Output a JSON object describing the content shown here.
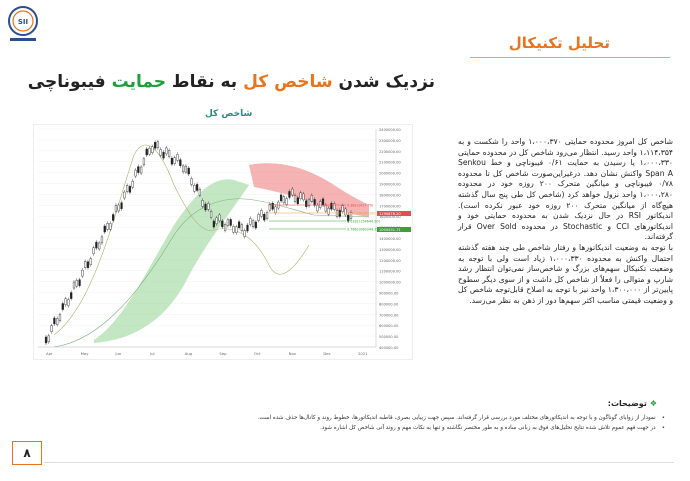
{
  "section_title": "تحلیل تکنیکال",
  "headline": {
    "part1": "نزدیک شدن ",
    "highlight1": "شاخص کل",
    "part2": " به نقاط ",
    "highlight2": "حمایت",
    "part3": " فیبوناچی"
  },
  "chart": {
    "title": "شاخص کل",
    "y_axis_labels": [
      "2400000.00",
      "2300000.00",
      "2200000.00",
      "2100000.00",
      "2000000.00",
      "1900000.00",
      "1800000.00",
      "1700000.00",
      "1600000.00",
      "1500000.00",
      "1400000.00",
      "1300000.00",
      "1200000.00",
      "1100000.00",
      "1000000.00",
      "900000.00",
      "800000.00",
      "700000.00",
      "600000.00",
      "500000.00",
      "400000.00"
    ],
    "x_axis_labels": [
      "Apr",
      "May",
      "Jun",
      "Jul",
      "Aug",
      "Sep",
      "Oct",
      "Nov",
      "Dec",
      "2021"
    ],
    "fib_labels": [
      "0.382(1417.70)",
      "0.5(1336940.00)",
      "0.618(1154644.90)",
      "0.786(1080344.35)"
    ],
    "price_tag": "1190876.20",
    "support_tag": "1000431.71",
    "colors": {
      "cloud_bear": "#f08080",
      "cloud_bull": "#8fd48f",
      "candle": "#222222",
      "fib_red": "#e05050",
      "fib_orange": "#e8a040",
      "fib_green": "#3aa03a"
    }
  },
  "body_paragraphs": [
    "شاخص کل امروز محدوده حمایتی ۱،۰۰۰،۳۷۰ واحد را شکست و به ۱،۱۱۴،۳۵۴ واحد رسید. انتظار می‌رود شاخص کل در محدوده حمایتی ۱،۰۰۰،۳۳۰ یا رسیدن به حمایت ۰/۶۱ فیبوناچی و خط Senkou Span A واکنش نشان دهد. درغیراین‌صورت شاخص کل تا محدوده ۰/۷۸ فیبوناچی و میانگین متحرک ۲۰۰ روزه خود در محدوده ۱،۰۰۰،۲۸۰ واحد نزول خواهد کرد (شاخص کل طی پنج سال گذشته هیچ‌گاه از میانگین متحرک ۲۰۰ روزه خود عبور نکرده است). اندیکاتور RSI در حال نزدیک شدن به محدوده حمایتی خود و اندیکاتورهای CCI و Stochastic در محدوده Over Sold قرار گرفته‌اند.",
    "با توجه به وضعیت اندیکاتورها و رفتار شاخص طی چند هفته گذشته احتمال واکنش به محدوده ۱،۰۰۰،۳۳۰ زیاد است ولی با توجه به وضعیت تکنیکال سهم‌های بزرگ و شاخص‌ساز نمی‌توان انتظار رشد شارپ و متوالی را فعلاً از شاخص کل داشت و از سوی دیگر سطوح پایین‌تر از ۱،۳۰۰،۰۰۰ واحد نیز با توجه به اصلاح قابل‌توجه شاخص کل و وضعیت قیمتی مناسب اکثر سهم‌ها دور از ذهن به نظر می‌رسد."
  ],
  "notes": {
    "title": "توضیحات:",
    "items": [
      "نمودار از زوایای گوناگون و با توجه به اندیکاتورهای مختلف مورد بررسی قرار گرفته‌اند. سپس جهت زیبایی بصری، قاطبه اندیکاتورها، خطوط روند و کانال‌ها حذف شده است.",
      "در جهت فهم عموم تلاش شده نتایج تحلیل‌های فوق به زبانی ساده و به طور مختصر نگاشته و تنها به نکات مهم و روند آتی شاخص کل اشاره شود."
    ]
  },
  "page_number": "۸"
}
